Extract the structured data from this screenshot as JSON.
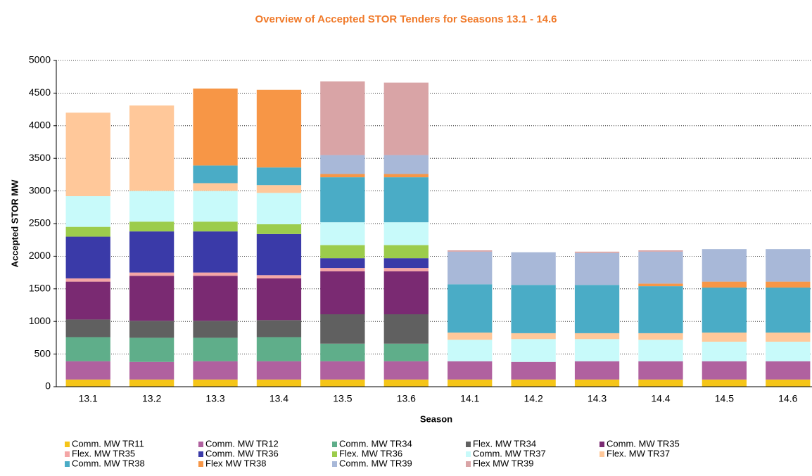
{
  "chart_data": {
    "type": "stacked-bar",
    "title": "Overview of Accepted STOR Tenders for Seasons 13.1 - 14.6",
    "x_label": "Season",
    "y_label": "Accepted STOR MW",
    "categories": [
      "13.1",
      "13.2",
      "13.3",
      "13.4",
      "13.5",
      "13.6",
      "14.1",
      "14.2",
      "14.3",
      "14.4",
      "14.5",
      "14.6"
    ],
    "ylim": [
      0,
      5000
    ],
    "yticks": [
      0,
      500,
      1000,
      1500,
      2000,
      2500,
      3000,
      3500,
      4000,
      4500,
      5000
    ],
    "grid": true,
    "series": [
      {
        "name": "Comm. MW TR11",
        "color": "#f5c518",
        "values": [
          110,
          110,
          110,
          110,
          110,
          110,
          110,
          110,
          110,
          110,
          110,
          110
        ]
      },
      {
        "name": "Comm. MW TR12",
        "color": "#b0619f",
        "values": [
          280,
          270,
          280,
          280,
          280,
          280,
          280,
          270,
          280,
          280,
          280,
          280
        ]
      },
      {
        "name": "Comm. MW TR34",
        "color": "#5fae8a",
        "values": [
          370,
          370,
          360,
          370,
          270,
          270,
          0,
          0,
          0,
          0,
          0,
          0
        ]
      },
      {
        "name": "Flex. MW TR34",
        "color": "#606060",
        "values": [
          270,
          260,
          260,
          260,
          450,
          450,
          0,
          0,
          0,
          0,
          0,
          0
        ]
      },
      {
        "name": "Comm. MW TR35",
        "color": "#7a2a72",
        "values": [
          580,
          690,
          690,
          640,
          660,
          660,
          0,
          0,
          0,
          0,
          0,
          0
        ]
      },
      {
        "name": "Flex. MW TR35",
        "color": "#f4a6a6",
        "values": [
          50,
          50,
          50,
          50,
          50,
          50,
          0,
          0,
          0,
          0,
          0,
          0
        ]
      },
      {
        "name": "Comm. MW TR36",
        "color": "#3a3aa8",
        "values": [
          640,
          630,
          630,
          630,
          150,
          150,
          0,
          0,
          0,
          0,
          0,
          0
        ]
      },
      {
        "name": "Flex. MW TR36",
        "color": "#9ccc4c",
        "values": [
          150,
          150,
          150,
          150,
          200,
          200,
          0,
          0,
          0,
          0,
          0,
          0
        ]
      },
      {
        "name": "Comm. MW TR37",
        "color": "#c8fafa",
        "values": [
          470,
          470,
          470,
          480,
          350,
          350,
          330,
          350,
          340,
          330,
          300,
          300
        ]
      },
      {
        "name": "Flex. MW TR37",
        "color": "#ffc89a",
        "values": [
          1280,
          1310,
          120,
          120,
          0,
          0,
          110,
          90,
          90,
          100,
          140,
          140
        ]
      },
      {
        "name": "Comm. MW TR38",
        "color": "#4aacc6",
        "values": [
          0,
          0,
          270,
          270,
          690,
          690,
          740,
          740,
          740,
          720,
          690,
          690
        ]
      },
      {
        "name": "Flex MW TR38",
        "color": "#f79646",
        "values": [
          0,
          0,
          1180,
          1190,
          50,
          50,
          0,
          0,
          0,
          40,
          90,
          90
        ]
      },
      {
        "name": "Comm. MW TR39",
        "color": "#a8b8d8",
        "values": [
          0,
          0,
          0,
          0,
          290,
          290,
          500,
          500,
          490,
          490,
          500,
          500
        ]
      },
      {
        "name": "Flex MW TR39",
        "color": "#d9a4a6",
        "values": [
          0,
          0,
          0,
          0,
          1130,
          1110,
          20,
          0,
          20,
          20,
          0,
          0
        ]
      }
    ]
  }
}
